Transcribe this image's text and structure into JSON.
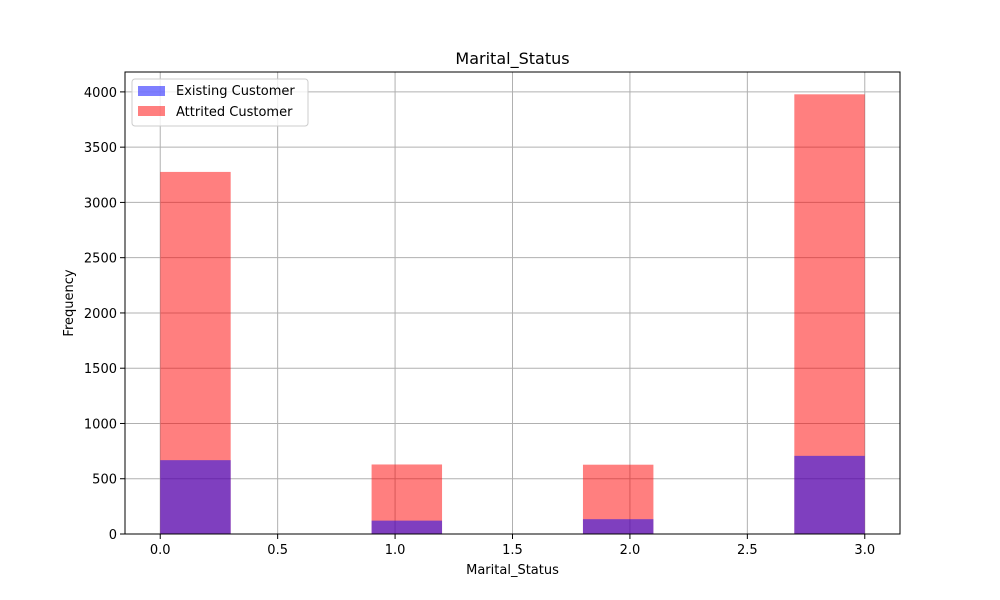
{
  "chart_data": {
    "type": "bar",
    "title": "Marital_Status",
    "xlabel": "Marital_Status",
    "ylabel": "Frequency",
    "xlim": [
      -0.15,
      3.15
    ],
    "ylim": [
      0,
      4180
    ],
    "xticks": [
      "0.0",
      "0.5",
      "1.0",
      "1.5",
      "2.0",
      "2.5",
      "3.0"
    ],
    "xtick_values": [
      0.0,
      0.5,
      1.0,
      1.5,
      2.0,
      2.5,
      3.0
    ],
    "yticks": [
      "0",
      "500",
      "1000",
      "1500",
      "2000",
      "2500",
      "3000",
      "3500",
      "4000"
    ],
    "ytick_values": [
      0,
      500,
      1000,
      1500,
      2000,
      2500,
      3000,
      3500,
      4000
    ],
    "grid": true,
    "legend_position": "top-left",
    "bin_width": 0.3,
    "bin_starts": [
      0.0,
      0.9,
      1.8,
      2.7
    ],
    "series": [
      {
        "name": "Attrited Customer",
        "color": "#ff0000",
        "opacity": 0.5,
        "values": [
          3276,
          629,
          627,
          3978
        ]
      },
      {
        "name": "Existing Customer",
        "color": "#0000ff",
        "opacity": 0.5,
        "values": [
          668,
          121,
          134,
          707
        ]
      }
    ],
    "legend": [
      {
        "name": "Existing Customer",
        "color": "#0000ff"
      },
      {
        "name": "Attrited Customer",
        "color": "#ff0000"
      }
    ]
  }
}
